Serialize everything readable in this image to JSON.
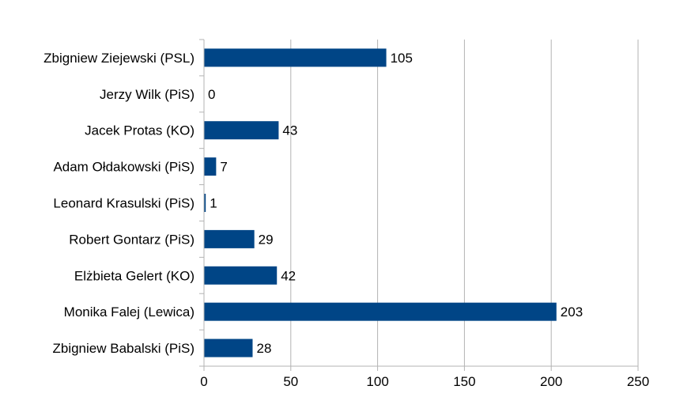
{
  "chart_data": {
    "type": "bar",
    "orientation": "horizontal",
    "categories": [
      "Zbigniew Ziejewski (PSL)",
      "Jerzy Wilk (PiS)",
      "Jacek Protas (KO)",
      "Adam Ołdakowski (PiS)",
      "Leonard Krasulski (PiS)",
      "Robert Gontarz (PiS)",
      "Elżbieta Gelert (KO)",
      "Monika Falej (Lewica)",
      "Zbigniew Babalski (PiS)"
    ],
    "values": [
      105,
      0,
      43,
      7,
      1,
      29,
      42,
      203,
      28
    ],
    "data_labels": [
      "105",
      "0",
      "43",
      "7",
      "1",
      "29",
      "42",
      "203",
      "28"
    ],
    "title": "",
    "xlabel": "",
    "ylabel": "",
    "xlim": [
      0,
      250
    ],
    "x_ticks": [
      0,
      50,
      100,
      150,
      200,
      250
    ],
    "x_tick_labels": [
      "0",
      "50",
      "100",
      "150",
      "200",
      "250"
    ],
    "grid": "vertical",
    "legend": "none",
    "bar_color": "#004586",
    "grid_color": "#b3b3b3"
  }
}
